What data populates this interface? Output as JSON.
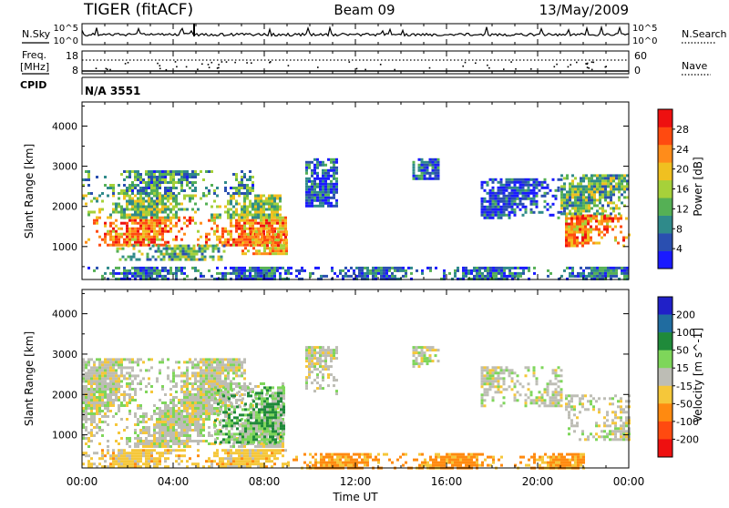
{
  "header": {
    "radar": "TIGER (fitACF)",
    "beam": "Beam 09",
    "date": "13/May/2009",
    "cpid_label": "CPID",
    "cpid_value": "N/A 3551"
  },
  "nsky_panel": {
    "left_label": "N.Sky",
    "right_label": "N.Search",
    "y_ticks": [
      "10^5",
      "10^0"
    ],
    "y_ticks_right": [
      "10^5",
      "10^0"
    ]
  },
  "freq_panel": {
    "left_label_top": "Freq.",
    "left_label_bottom": "[MHz]",
    "right_label": "Nave",
    "y_ticks": [
      "18",
      "8"
    ],
    "y_ticks_right": [
      "60",
      "0"
    ]
  },
  "time_axis": {
    "label": "Time UT",
    "ticks": [
      "00:00",
      "04:00",
      "08:00",
      "12:00",
      "16:00",
      "20:00",
      "00:00"
    ]
  },
  "chart_data": [
    {
      "type": "heatmap",
      "name": "power",
      "xlabel": "Time UT",
      "ylabel": "Slant Range [km]",
      "xlim_hours": [
        0,
        24
      ],
      "ylim_km": [
        180,
        4600
      ],
      "y_ticks": [
        1000,
        2000,
        3000,
        4000
      ],
      "colorbar": {
        "label": "Power [dB]",
        "ticks": [
          4,
          8,
          12,
          16,
          20,
          24,
          28
        ],
        "range": [
          0,
          32
        ],
        "colors": [
          "#1a1aff",
          "#2a4fb0",
          "#2f8a8a",
          "#55b055",
          "#a6d13a",
          "#f0c020",
          "#ff8c1a",
          "#ff4a10",
          "#ee1010"
        ]
      },
      "regions": [
        {
          "t0": 0.0,
          "t1": 8.9,
          "r0": 1050,
          "r1": 1750,
          "level": 24
        },
        {
          "t0": 0.0,
          "t1": 8.7,
          "r0": 1750,
          "r1": 2300,
          "level": 14
        },
        {
          "t0": 0.0,
          "t1": 7.5,
          "r0": 2300,
          "r1": 2900,
          "level": 10
        },
        {
          "t0": 1.5,
          "t1": 6.5,
          "r0": 700,
          "r1": 1050,
          "level": 12
        },
        {
          "t0": 7.0,
          "t1": 9.0,
          "r0": 850,
          "r1": 1400,
          "level": 22
        },
        {
          "t0": 9.8,
          "t1": 11.2,
          "r0": 2000,
          "r1": 3200,
          "level": 6
        },
        {
          "t0": 14.5,
          "t1": 15.6,
          "r0": 2700,
          "r1": 3200,
          "level": 6
        },
        {
          "t0": 17.5,
          "t1": 21.0,
          "r0": 1700,
          "r1": 2700,
          "level": 5
        },
        {
          "t0": 21.2,
          "t1": 24.0,
          "r0": 1000,
          "r1": 1800,
          "level": 24
        },
        {
          "t0": 21.0,
          "t1": 24.0,
          "r0": 1800,
          "r1": 2800,
          "level": 12
        },
        {
          "t0": 0.0,
          "t1": 24.0,
          "r0": 180,
          "r1": 500,
          "level": 7
        }
      ]
    },
    {
      "type": "heatmap",
      "name": "velocity",
      "xlabel": "Time UT",
      "ylabel": "Slant Range [km]",
      "xlim_hours": [
        0,
        24
      ],
      "ylim_km": [
        180,
        4600
      ],
      "y_ticks": [
        1000,
        2000,
        3000,
        4000
      ],
      "colorbar": {
        "label": "Velocity [m s^-1]",
        "ticks": [
          200,
          100,
          50,
          15,
          -15,
          -50,
          -100,
          -200
        ],
        "colors": [
          "#2020c8",
          "#206ca0",
          "#1f8a3a",
          "#7ed65a",
          "#bdbdb5",
          "#f5c73a",
          "#ff8a10",
          "#ff4a10",
          "#ee1010"
        ]
      },
      "regions": [
        {
          "t0": 0.0,
          "t1": 8.8,
          "r0": 700,
          "r1": 2300,
          "level": 0
        },
        {
          "t0": 0.0,
          "t1": 7.2,
          "r0": 2300,
          "r1": 2900,
          "level": 0
        },
        {
          "t0": 5.8,
          "t1": 8.9,
          "r0": 800,
          "r1": 2200,
          "level": 30
        },
        {
          "t0": 9.8,
          "t1": 11.2,
          "r0": 2000,
          "r1": 3200,
          "level": 0
        },
        {
          "t0": 14.5,
          "t1": 15.6,
          "r0": 2700,
          "r1": 3200,
          "level": 0
        },
        {
          "t0": 17.5,
          "t1": 21.0,
          "r0": 1700,
          "r1": 2700,
          "level": 0
        },
        {
          "t0": 21.2,
          "t1": 24.0,
          "r0": 900,
          "r1": 2000,
          "level": 0
        },
        {
          "t0": 0.0,
          "t1": 9.0,
          "r0": 180,
          "r1": 650,
          "level": -30
        },
        {
          "t0": 9.0,
          "t1": 22.0,
          "r0": 180,
          "r1": 550,
          "level": -60
        }
      ]
    }
  ]
}
